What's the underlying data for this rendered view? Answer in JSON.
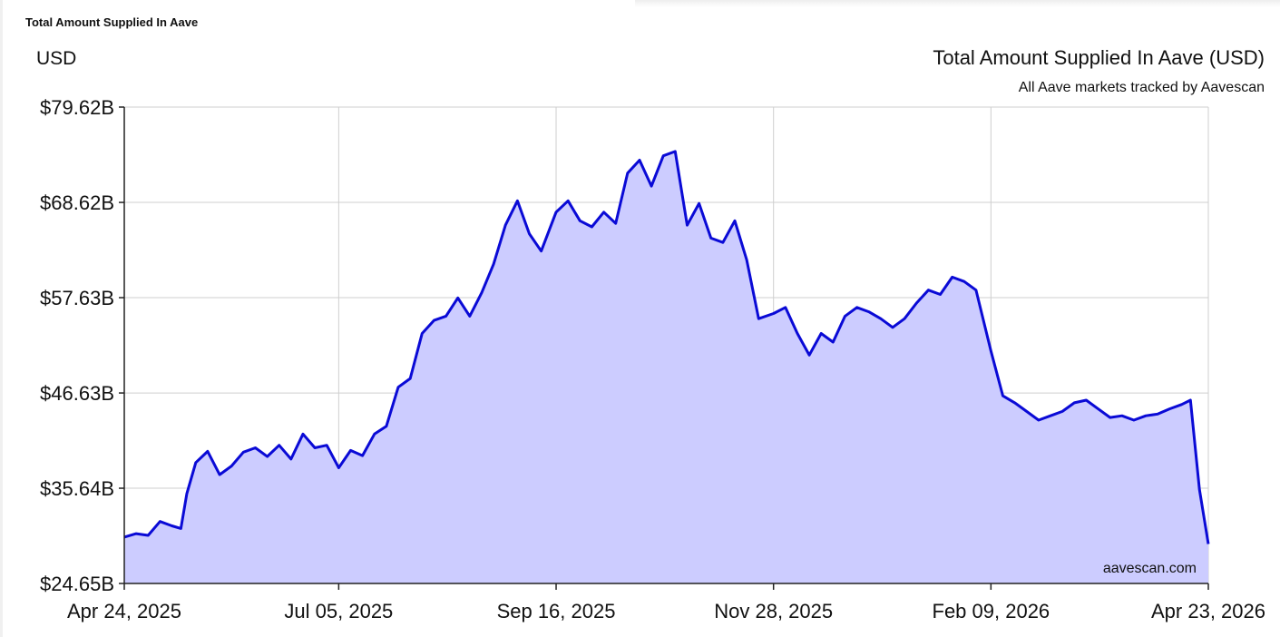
{
  "page": {
    "heading": "Total Amount Supplied In Aave"
  },
  "chart_data": {
    "type": "area",
    "title": "Total Amount Supplied In Aave (USD)",
    "subtitle": "All Aave markets tracked by Aavescan",
    "ylabel": "USD",
    "xlabel": "",
    "watermark": "aavescan.com",
    "ylim": [
      24.65,
      79.62
    ],
    "yticks": [
      24.65,
      35.64,
      46.63,
      57.63,
      68.62,
      79.62
    ],
    "ytick_labels": [
      "$24.65B",
      "$35.64B",
      "$46.63B",
      "$57.63B",
      "$68.62B",
      "$79.62B"
    ],
    "xlim": [
      "2025-04-24",
      "2026-04-23"
    ],
    "xticks": [
      "2025-04-24",
      "2025-07-05",
      "2025-09-16",
      "2025-11-28",
      "2026-02-09",
      "2026-04-23"
    ],
    "xtick_labels": [
      "Apr 24, 2025",
      "Jul 05, 2025",
      "Sep 16, 2025",
      "Nov 28, 2025",
      "Feb 09, 2026",
      "Apr 23, 2026"
    ],
    "grid": true,
    "colors": {
      "line": "#0a0ad6",
      "fill": "#ccccff",
      "grid": "#cfcfcf",
      "axis": "#222222"
    },
    "series": [
      {
        "x": [
          "2025-04-24",
          "2025-04-28",
          "2025-05-02",
          "2025-05-06",
          "2025-05-10",
          "2025-05-13",
          "2025-05-15",
          "2025-05-18",
          "2025-05-22",
          "2025-05-26",
          "2025-05-30",
          "2025-06-03",
          "2025-06-07",
          "2025-06-11",
          "2025-06-15",
          "2025-06-19",
          "2025-06-23",
          "2025-06-27",
          "2025-07-01",
          "2025-07-05",
          "2025-07-09",
          "2025-07-13",
          "2025-07-17",
          "2025-07-21",
          "2025-07-25",
          "2025-07-29",
          "2025-08-02",
          "2025-08-06",
          "2025-08-10",
          "2025-08-14",
          "2025-08-18",
          "2025-08-22",
          "2025-08-26",
          "2025-08-30",
          "2025-09-03",
          "2025-09-07",
          "2025-09-11",
          "2025-09-16",
          "2025-09-20",
          "2025-09-24",
          "2025-09-28",
          "2025-10-02",
          "2025-10-06",
          "2025-10-10",
          "2025-10-14",
          "2025-10-18",
          "2025-10-22",
          "2025-10-26",
          "2025-10-30",
          "2025-11-03",
          "2025-11-07",
          "2025-11-11",
          "2025-11-15",
          "2025-11-19",
          "2025-11-23",
          "2025-11-28",
          "2025-12-02",
          "2025-12-06",
          "2025-12-10",
          "2025-12-14",
          "2025-12-18",
          "2025-12-22",
          "2025-12-26",
          "2025-12-30",
          "2026-01-03",
          "2026-01-07",
          "2026-01-11",
          "2026-01-15",
          "2026-01-19",
          "2026-01-23",
          "2026-01-27",
          "2026-01-31",
          "2026-02-04",
          "2026-02-09",
          "2026-02-13",
          "2026-02-17",
          "2026-02-21",
          "2026-02-25",
          "2026-03-01",
          "2026-03-05",
          "2026-03-09",
          "2026-03-13",
          "2026-03-17",
          "2026-03-21",
          "2026-03-25",
          "2026-03-29",
          "2026-04-02",
          "2026-04-06",
          "2026-04-10",
          "2026-04-14",
          "2026-04-17",
          "2026-04-20",
          "2026-04-23"
        ],
        "values": [
          30.0,
          30.4,
          30.2,
          31.8,
          31.3,
          31.0,
          35.0,
          38.6,
          39.9,
          37.2,
          38.2,
          39.8,
          40.3,
          39.3,
          40.6,
          39.0,
          41.9,
          40.3,
          40.6,
          38.0,
          40.0,
          39.4,
          41.9,
          42.8,
          47.3,
          48.3,
          53.5,
          55.0,
          55.5,
          57.6,
          55.5,
          58.2,
          61.5,
          66.0,
          68.8,
          65.0,
          63.0,
          67.5,
          68.8,
          66.5,
          65.8,
          67.5,
          66.2,
          72.0,
          73.5,
          70.5,
          74.0,
          74.5,
          66.0,
          68.5,
          64.5,
          64.0,
          66.5,
          62.0,
          55.2,
          55.8,
          56.5,
          53.5,
          51.0,
          53.5,
          52.5,
          55.5,
          56.5,
          56.0,
          55.2,
          54.2,
          55.2,
          57.0,
          58.5,
          58.0,
          60.0,
          59.5,
          58.5,
          51.5,
          46.3,
          45.5,
          44.5,
          43.5,
          44.0,
          44.5,
          45.5,
          45.8,
          44.8,
          43.8,
          44.0,
          43.5,
          44.0,
          44.2,
          44.8,
          45.3,
          45.8,
          35.5,
          29.2
        ]
      }
    ]
  }
}
